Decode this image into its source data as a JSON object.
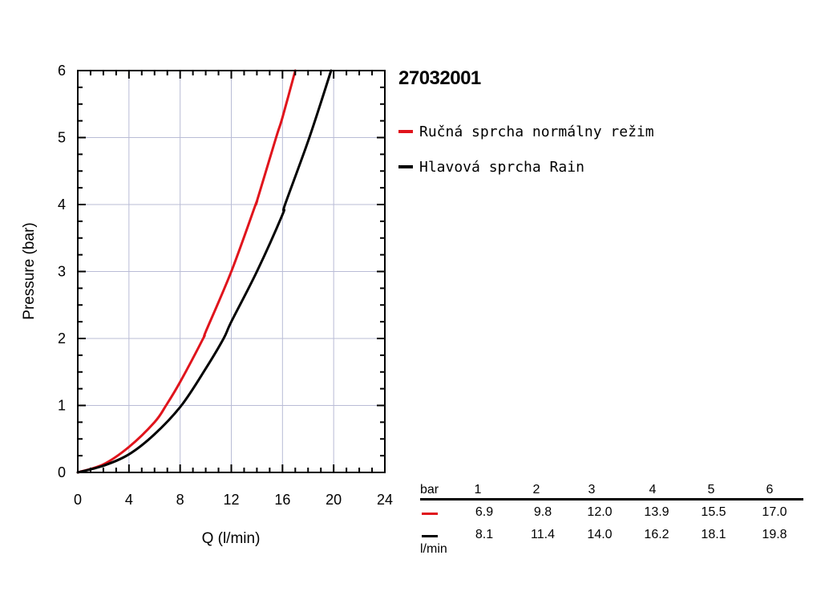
{
  "chart_data": {
    "type": "line",
    "title": "27032001",
    "xlabel": "Q (l/min)",
    "ylabel": "Pressure (bar)",
    "xlim": [
      0,
      24
    ],
    "ylim": [
      0,
      6
    ],
    "x_ticks": [
      "0",
      "4",
      "8",
      "12",
      "16",
      "20",
      "24"
    ],
    "y_ticks": [
      "0",
      "1",
      "2",
      "3",
      "4",
      "5",
      "6"
    ],
    "grid": true,
    "legend_position": "right",
    "series": [
      {
        "name": "Ručná sprcha normálny režim",
        "color": "#e0141c",
        "points": [
          [
            0,
            0
          ],
          [
            2,
            0.12
          ],
          [
            4,
            0.38
          ],
          [
            6,
            0.75
          ],
          [
            6.9,
            1.0
          ],
          [
            8,
            1.35
          ],
          [
            9.8,
            2.0
          ],
          [
            10,
            2.1
          ],
          [
            12,
            3.0
          ],
          [
            13.9,
            4.0
          ],
          [
            14,
            4.05
          ],
          [
            15.5,
            5.0
          ],
          [
            16,
            5.3
          ],
          [
            17.0,
            6.0
          ]
        ]
      },
      {
        "name": "Hlavová sprcha Rain",
        "color": "#000000",
        "points": [
          [
            0,
            0
          ],
          [
            2,
            0.1
          ],
          [
            4,
            0.27
          ],
          [
            6,
            0.57
          ],
          [
            8.1,
            1.0
          ],
          [
            10,
            1.55
          ],
          [
            11.4,
            2.0
          ],
          [
            12,
            2.25
          ],
          [
            14.0,
            3.0
          ],
          [
            16,
            3.85
          ],
          [
            16.2,
            4.0
          ],
          [
            18.1,
            5.0
          ],
          [
            19.8,
            6.0
          ]
        ]
      }
    ]
  },
  "flow_table": {
    "header_label": "bar",
    "unit_label": "l/min",
    "pressures": [
      "1",
      "2",
      "3",
      "4",
      "5",
      "6"
    ],
    "rows": [
      {
        "color": "#e0141c",
        "values": [
          "6.9",
          "9.8",
          "12.0",
          "13.9",
          "15.5",
          "17.0"
        ]
      },
      {
        "color": "#000000",
        "values": [
          "8.1",
          "11.4",
          "14.0",
          "16.2",
          "18.1",
          "19.8"
        ]
      }
    ]
  }
}
